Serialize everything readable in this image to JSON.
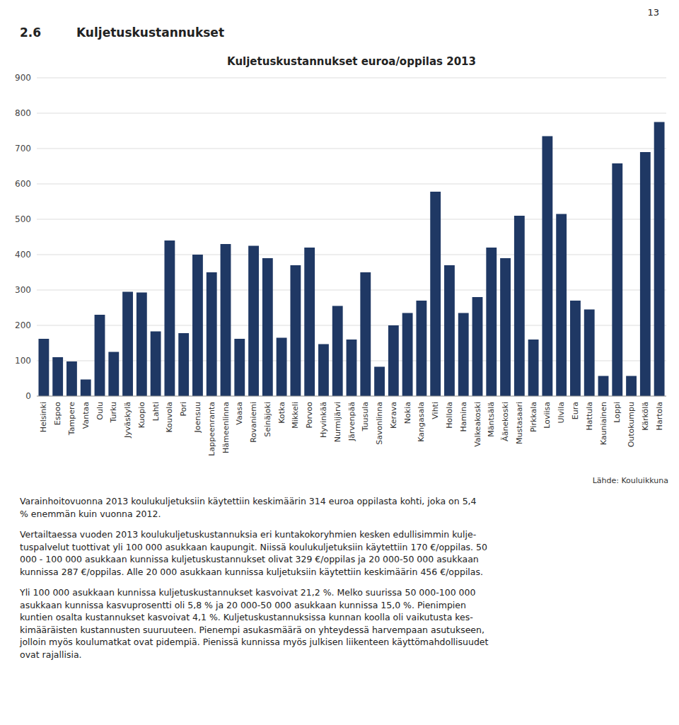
{
  "page_number": "13",
  "heading_num": "2.6",
  "heading_text": "Kuljetuskustannukset",
  "paragraphs": [
    "Varainhoitovuonna 2013 koulukuljetuksiin käytettiin keskimäärin 314 euroa oppilasta kohti, joka on 5,4\n% enemmän kuin vuonna 2012.",
    "Vertailtaessa vuoden 2013 koulukuljetuskustannuksia eri kuntakokoryhmien kesken edullisimmin kulje-\ntuspalvelut tuottivat yli 100 000 asukkaan kaupungit. Niissä koulukuljetuksiin käytettiin 170 €/oppilas. 50\n000 - 100 000 asukkaan kunnissa kuljetuskustannukset olivat 329 €/oppilas ja 20 000-50 000 asukkaan\nkunnissa 287 €/oppilas. Alle 20 000 asukkaan kunnissa kuljetuksiin käytettiin keskimäärin 456 €/oppilas.",
    "Yli 100 000 asukkaan kunnissa kuljetuskustannukset kasvoivat 21,2 %. Melko suurissa 50 000-100 000\nasukkaan kunnissa kasvuprosentti oli 5,8 % ja 20 000-50 000 asukkaan kunnissa 15,0 %. Pienimpien\nkuntien osalta kustannukset kasvoivat 4,1 %. Kuljetuskustannuksissa kunnan koolla oli vaikutusta kes-\nkimääräisten kustannusten suuruuteen. Pienempi asukasmäärä on yhteydessä harvempaan asutukseen,\njolloin myös koulumatkat ovat pidempiä. Pienissä kunnissa myös julkisen liikenteen käyttömahdollisuudet\novat rajallisia."
  ],
  "chart_data": {
    "type": "bar",
    "title": "Kuljetuskustannukset euroa/oppilas 2013",
    "categories": [
      "Helsinki",
      "Espoo",
      "Tampere",
      "Vantaa",
      "Oulu",
      "Turku",
      "Jyväskylä",
      "Kuopio",
      "Lahti",
      "Kouvola",
      "Pori",
      "Joensuu",
      "Lappeenranta",
      "Hämeenlinna",
      "Vaasa",
      "Rovaniemi",
      "Seinäjoki",
      "Kotka",
      "Mikkeli",
      "Porvoo",
      "Hyvinkää",
      "Nurmijärvi",
      "Järvenpää",
      "Tuusula",
      "Savonlinna",
      "Kerava",
      "Nokia",
      "Kangasala",
      "Vihti",
      "Hollola",
      "Hamina",
      "Valkeakoski",
      "Mäntsälä",
      "Äänekoski",
      "Mustasaari",
      "Pirkkala",
      "Loviisa",
      "Ulvila",
      "Eura",
      "Hattula",
      "Kauniainen",
      "Loppi",
      "Outokumpu",
      "Kärkölä",
      "Hartola"
    ],
    "values": [
      162,
      110,
      98,
      47,
      230,
      125,
      295,
      293,
      183,
      440,
      178,
      400,
      350,
      430,
      162,
      425,
      390,
      165,
      370,
      420,
      147,
      255,
      160,
      350,
      83,
      200,
      235,
      270,
      578,
      370,
      235,
      280,
      420,
      390,
      510,
      160,
      735,
      515,
      270,
      245,
      57,
      658,
      57,
      690,
      775
    ],
    "color": "#1F3864",
    "ylim": [
      0,
      900
    ],
    "yticks": [
      0,
      100,
      200,
      300,
      400,
      500,
      600,
      700,
      800,
      900
    ],
    "grid": true,
    "source": "Lähde: Kouluikkuna"
  }
}
